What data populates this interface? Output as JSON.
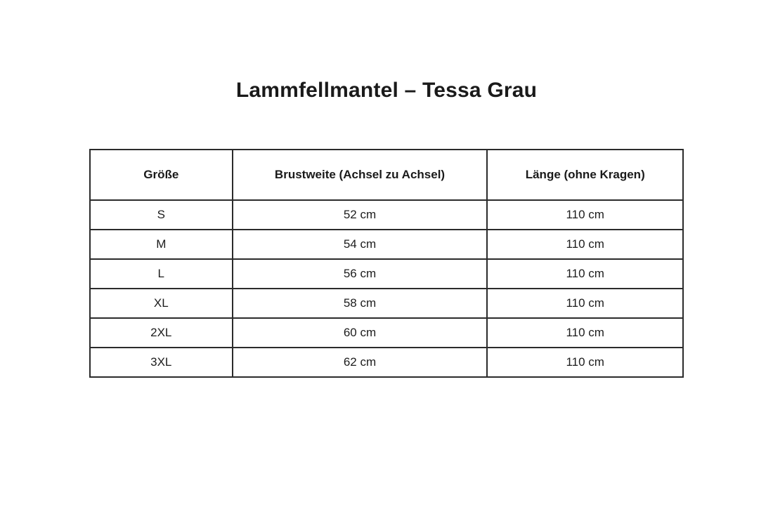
{
  "page": {
    "title": "Lammfellmantel – Tessa Grau"
  },
  "size_table": {
    "headers": [
      "Größe",
      "Brustweite (Achsel zu Achsel)",
      "Länge (ohne Kragen)"
    ],
    "rows": [
      {
        "size": "S",
        "chest": "52 cm",
        "length": "110 cm"
      },
      {
        "size": "M",
        "chest": "54 cm",
        "length": "110 cm"
      },
      {
        "size": "L",
        "chest": "56 cm",
        "length": "110 cm"
      },
      {
        "size": "XL",
        "chest": "58 cm",
        "length": "110 cm"
      },
      {
        "size": "2XL",
        "chest": "60 cm",
        "length": "110 cm"
      },
      {
        "size": "3XL",
        "chest": "62 cm",
        "length": "110 cm"
      }
    ]
  },
  "colors": {
    "background": "#ffffff",
    "text": "#1c1c1c",
    "border": "#2b2b2b"
  }
}
